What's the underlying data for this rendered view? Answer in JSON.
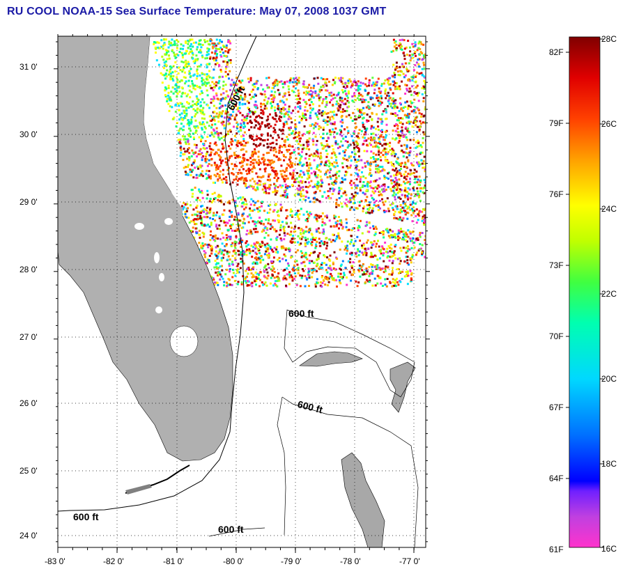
{
  "title": "RU COOL  NOAA-15  Sea Surface Temperature:  May 07, 2008 1037 GMT",
  "map": {
    "lat_ticks": [
      "31 0'",
      "30 0'",
      "29 0'",
      "28 0'",
      "27 0'",
      "26 0'",
      "25 0'",
      "24 0'"
    ],
    "lon_ticks": [
      "-83 0'",
      "-82 0'",
      "-81 0'",
      "-80 0'",
      "-79 0'",
      "-78 0'",
      "-77 0'"
    ],
    "contour_labels": [
      "600 ft",
      "600 ft",
      "600 ft",
      "600 ft",
      "600 ft"
    ],
    "land_color": "#b0b0b0",
    "ocean_color": "#ffffff"
  },
  "colorbar": {
    "fahrenheit_labels": [
      "82F",
      "79F",
      "76F",
      "73F",
      "70F",
      "67F",
      "64F",
      "61F"
    ],
    "celsius_labels": [
      "28C",
      "26C",
      "24C",
      "22C",
      "20C",
      "18C",
      "16C"
    ],
    "range_celsius": [
      16,
      28
    ]
  }
}
